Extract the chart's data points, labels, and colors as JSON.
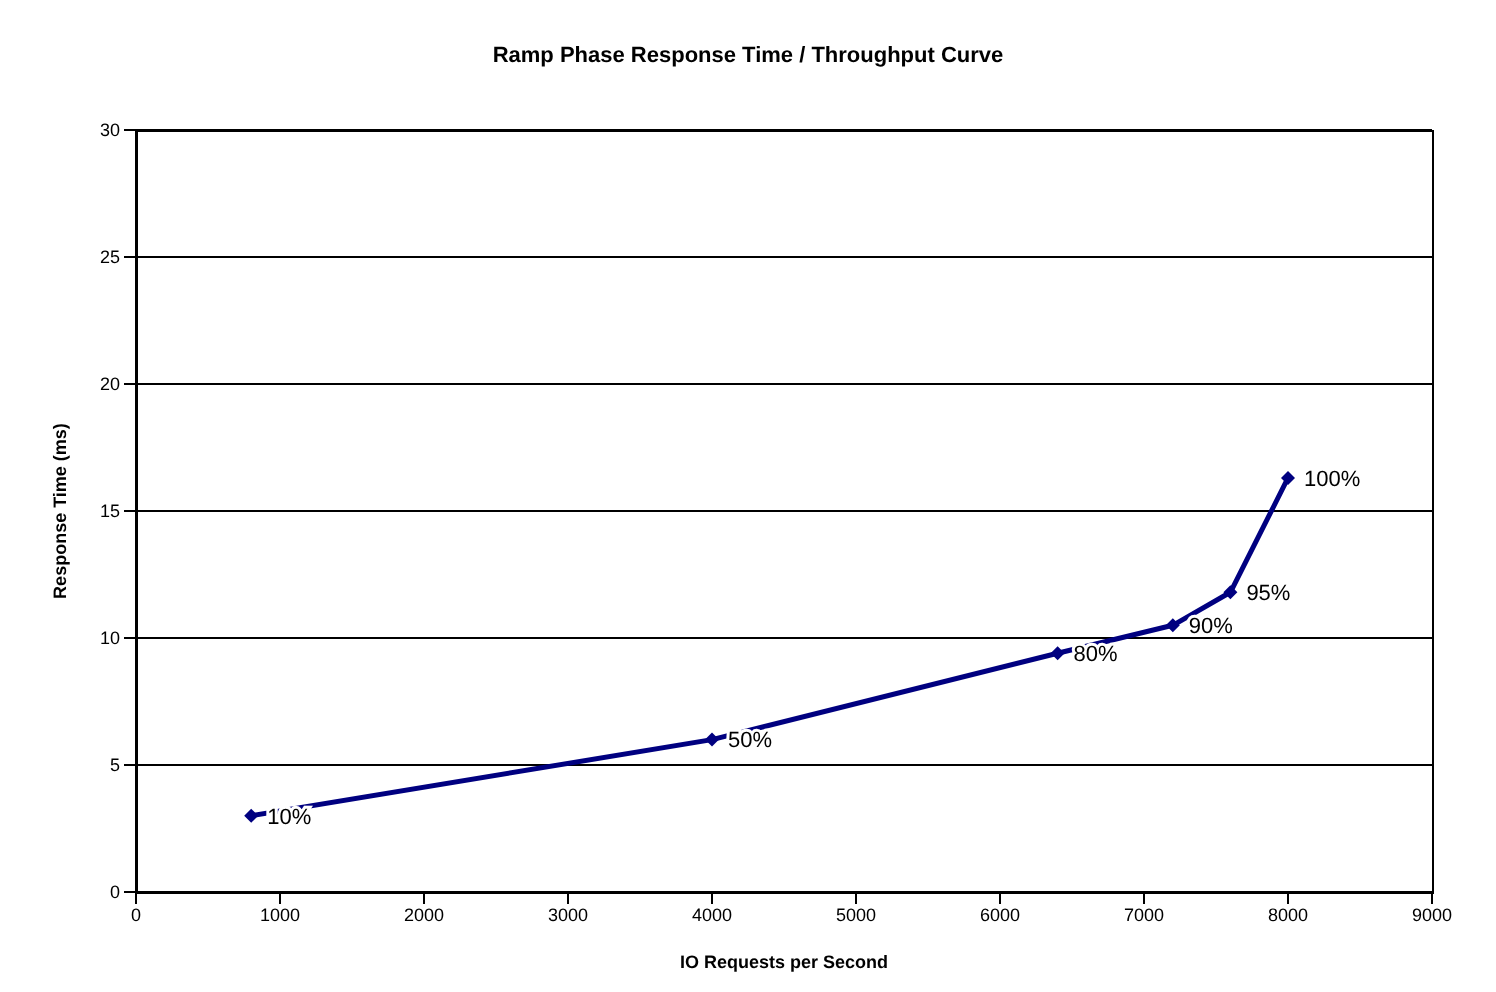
{
  "chart_data": {
    "type": "line",
    "title": "Ramp Phase Response Time / Throughput Curve",
    "xlabel": "IO Requests per Second",
    "ylabel": "Response Time (ms)",
    "x": [
      800,
      4000,
      6400,
      7200,
      7600,
      8000
    ],
    "series": [
      {
        "color": "#000080",
        "values": [
          3.0,
          6.0,
          9.4,
          10.5,
          11.8,
          16.3
        ]
      }
    ],
    "xlim": [
      0,
      9000
    ],
    "xticks": [
      0,
      1000,
      2000,
      3000,
      4000,
      5000,
      6000,
      7000,
      8000,
      9000
    ],
    "ylim": [
      0,
      30
    ],
    "yticks": [
      0,
      5,
      10,
      15,
      20,
      25,
      30
    ],
    "grid": "y",
    "marker": "diamond",
    "line_style": "solid",
    "legend": false,
    "annotations": [
      {
        "text": "10%",
        "x": 800,
        "y": 3.0
      },
      {
        "text": "50%",
        "x": 4000,
        "y": 6.0
      },
      {
        "text": "80%",
        "x": 6400,
        "y": 9.4
      },
      {
        "text": "90%",
        "x": 7200,
        "y": 10.5
      },
      {
        "text": "95%",
        "x": 7600,
        "y": 11.8
      },
      {
        "text": "100%",
        "x": 8000,
        "y": 16.3
      }
    ]
  }
}
